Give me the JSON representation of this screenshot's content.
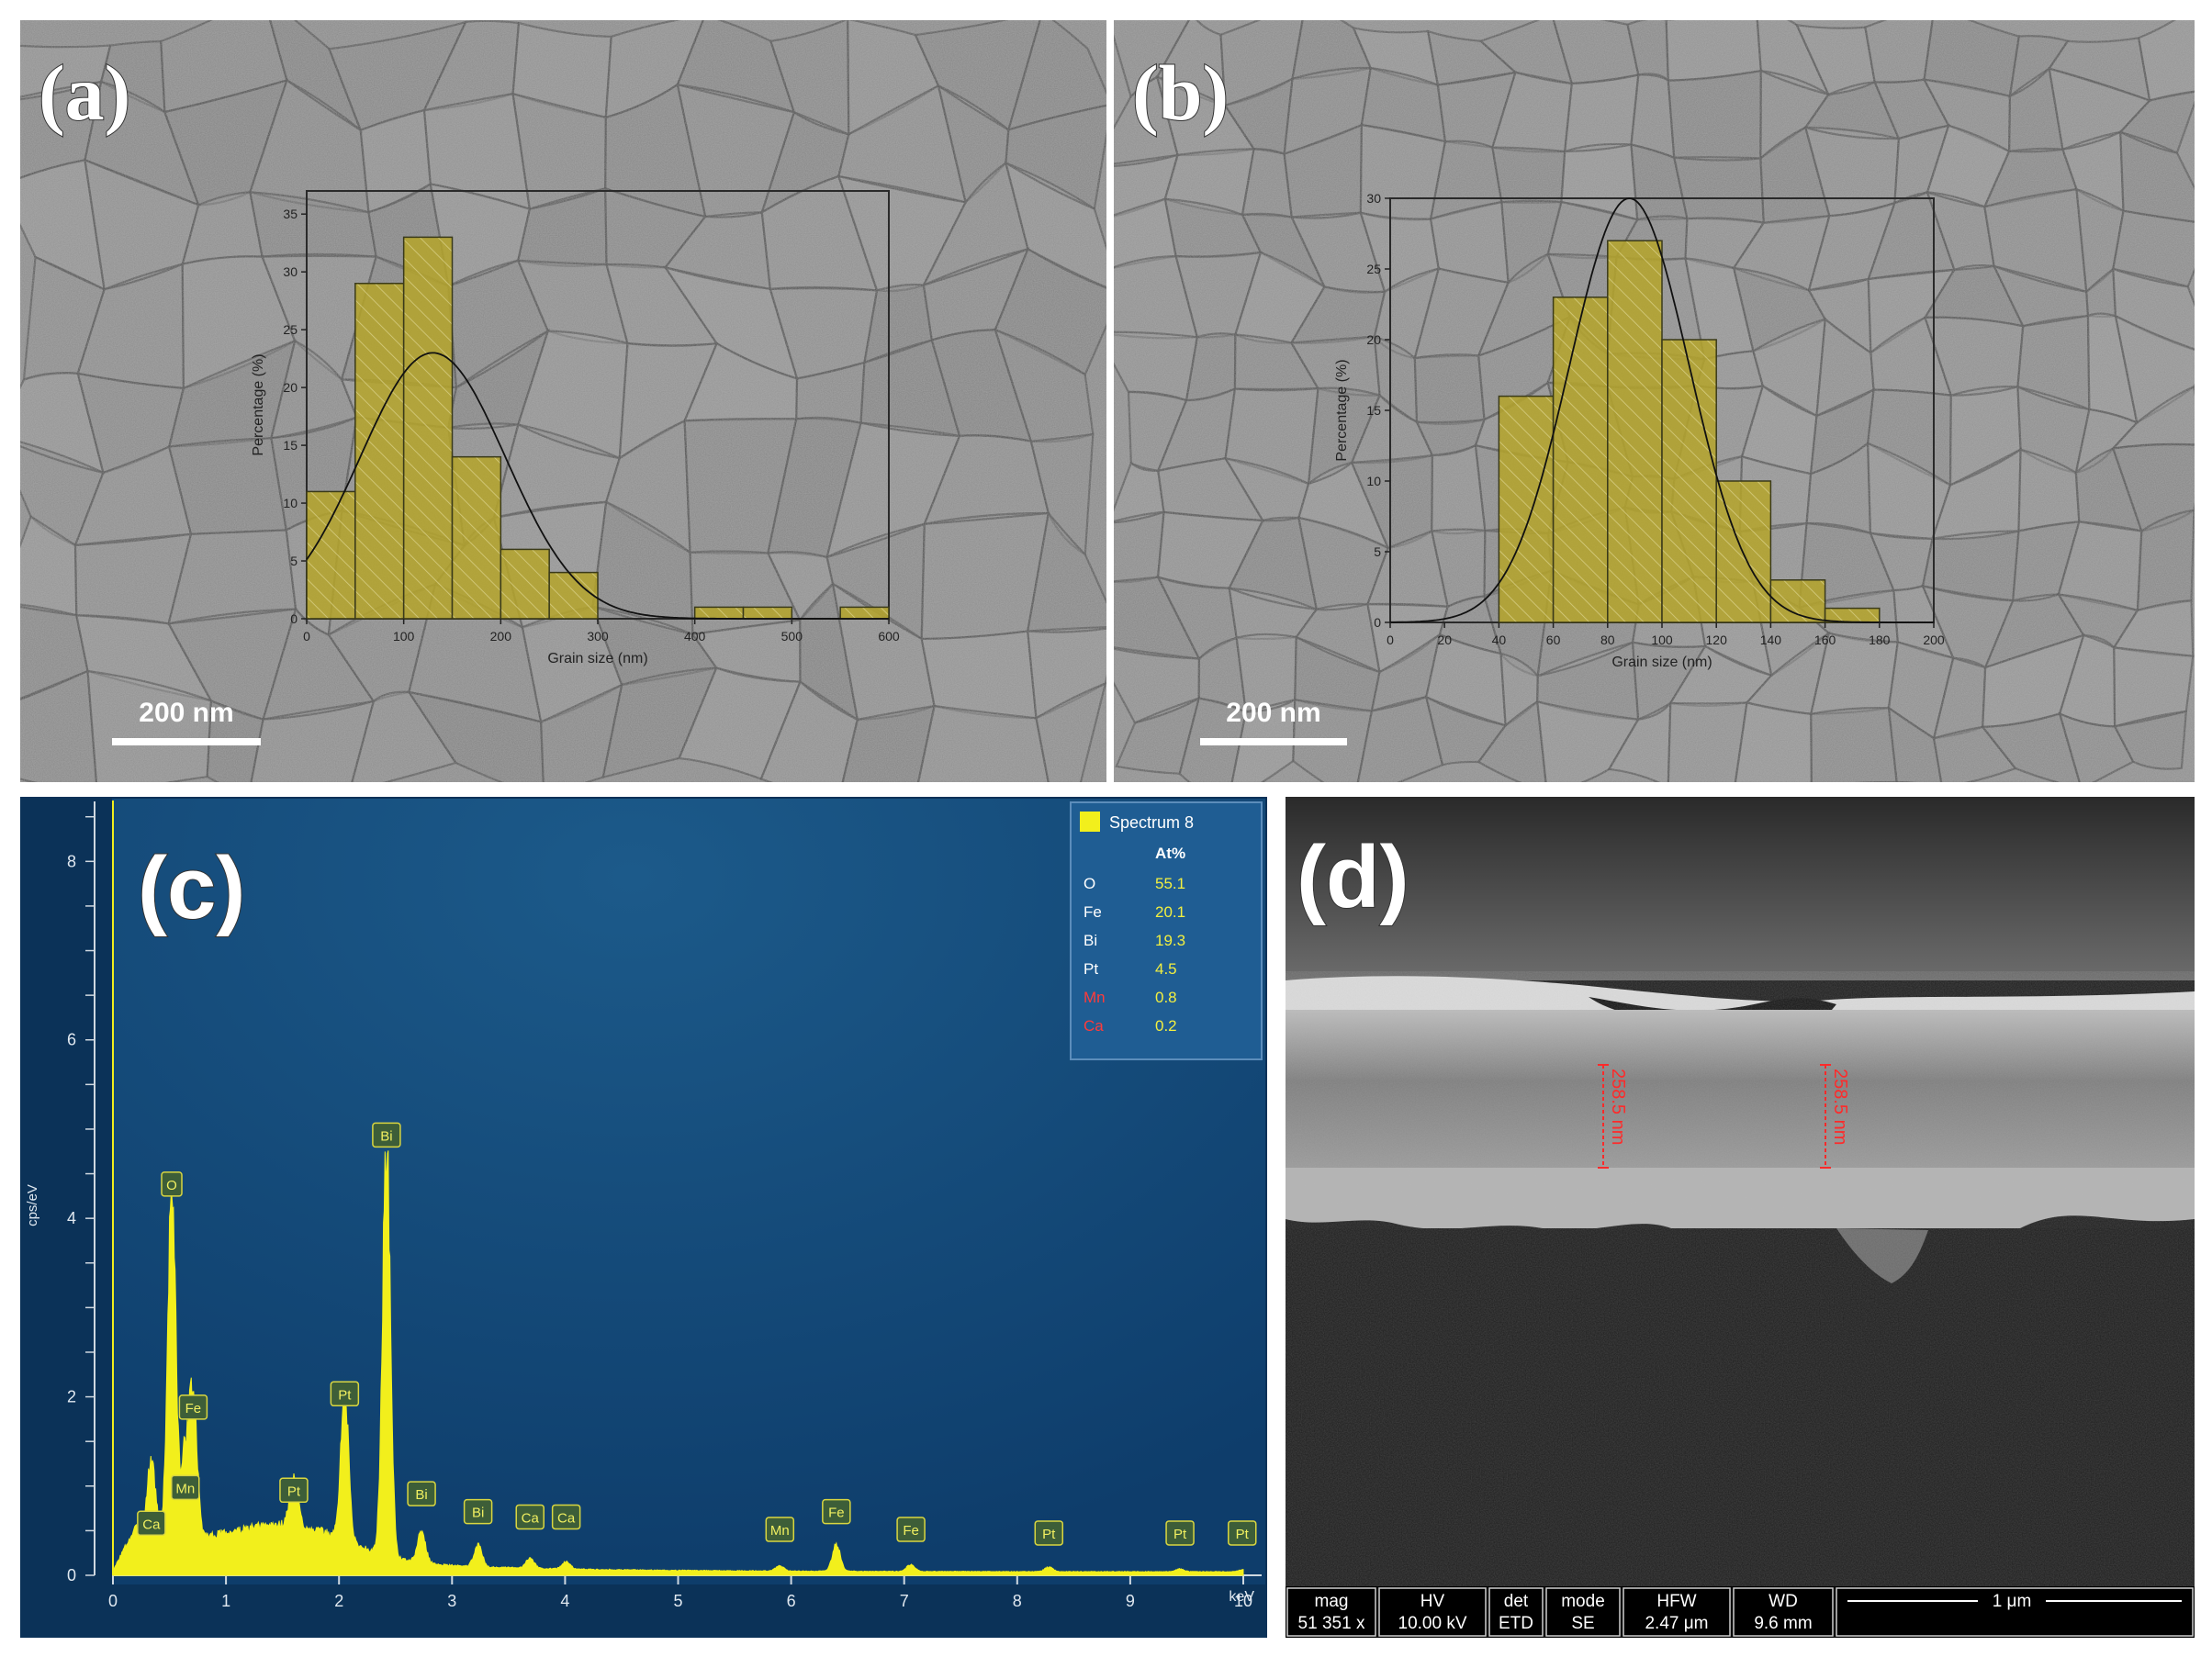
{
  "figure": {
    "panels": [
      {
        "label": "(a)",
        "scale_bar": "200 nm",
        "inset_chart": {
          "type": "bar",
          "xlabel": "Grain size (nm)",
          "ylabel": "Percentage (%)",
          "xlim": [
            0,
            600
          ],
          "ylim": [
            0,
            37
          ],
          "x_ticks": [
            0,
            100,
            200,
            300,
            400,
            500,
            600
          ],
          "y_ticks": [
            0,
            5,
            10,
            15,
            20,
            25,
            30,
            35
          ],
          "bin_width": 50,
          "bins": [
            0,
            50,
            100,
            150,
            200,
            250,
            300,
            350,
            400,
            450,
            500,
            550
          ],
          "values": [
            11,
            29,
            33,
            14,
            6,
            4,
            0,
            0,
            1,
            1,
            0,
            1
          ],
          "fit": {
            "type": "gaussian",
            "peak_x": 130,
            "peak_y": 23,
            "sigma": 75
          }
        }
      },
      {
        "label": "(b)",
        "scale_bar": "200 nm",
        "inset_chart": {
          "type": "bar",
          "xlabel": "Grain size (nm)",
          "ylabel": "Percentage (%)",
          "xlim": [
            0,
            200
          ],
          "ylim": [
            0,
            30
          ],
          "x_ticks": [
            0,
            20,
            40,
            60,
            80,
            100,
            120,
            140,
            160,
            180,
            200
          ],
          "y_ticks": [
            0,
            5,
            10,
            15,
            20,
            25,
            30
          ],
          "bin_width": 20,
          "bins": [
            40,
            60,
            80,
            100,
            120,
            140,
            160
          ],
          "values": [
            16,
            23,
            27,
            20,
            10,
            3,
            1
          ],
          "fit": {
            "type": "gaussian",
            "peak_x": 88,
            "peak_y": 30,
            "sigma": 22
          }
        }
      },
      {
        "label": "(c)",
        "legend": {
          "title": "Spectrum 8",
          "header": "At%",
          "rows": [
            {
              "element": "O",
              "value": "55.1",
              "color": "#ffffff"
            },
            {
              "element": "Fe",
              "value": "20.1",
              "color": "#ffffff"
            },
            {
              "element": "Bi",
              "value": "19.3",
              "color": "#ffffff"
            },
            {
              "element": "Pt",
              "value": "4.5",
              "color": "#ffffff"
            },
            {
              "element": "Mn",
              "value": "0.8",
              "color": "#ff3b3b"
            },
            {
              "element": "Ca",
              "value": "0.2",
              "color": "#ff3b3b"
            }
          ]
        },
        "chart_data": {
          "type": "line",
          "xlabel": "keV",
          "ylabel": "cps/eV",
          "xlim": [
            0,
            10
          ],
          "ylim": [
            0,
            8.6
          ],
          "x_ticks": [
            0,
            1,
            2,
            3,
            4,
            5,
            6,
            7,
            8,
            9,
            10
          ],
          "y_ticks": [
            0,
            2,
            4,
            6,
            8
          ],
          "peaks": [
            {
              "element": "Ca",
              "kev": 0.34,
              "height": 0.82
            },
            {
              "element": "Mn",
              "kev": 0.64,
              "height": 0.9
            },
            {
              "element": "O",
              "kev": 0.52,
              "height": 3.95
            },
            {
              "element": "Fe",
              "kev": 0.71,
              "height": 1.5
            },
            {
              "element": "Pt",
              "kev": 1.6,
              "height": 0.55
            },
            {
              "element": "Pt",
              "kev": 2.05,
              "height": 1.65
            },
            {
              "element": "Bi",
              "kev": 2.42,
              "height": 4.6
            },
            {
              "element": "Bi",
              "kev": 2.73,
              "height": 0.35
            },
            {
              "element": "Bi",
              "kev": 3.23,
              "height": 0.25
            },
            {
              "element": "Ca",
              "kev": 3.69,
              "height": 0.12
            },
            {
              "element": "Ca",
              "kev": 4.01,
              "height": 0.08
            },
            {
              "element": "Mn",
              "kev": 5.9,
              "height": 0.06
            },
            {
              "element": "Fe",
              "kev": 6.4,
              "height": 0.3
            },
            {
              "element": "Fe",
              "kev": 7.06,
              "height": 0.08
            },
            {
              "element": "Pt",
              "kev": 8.28,
              "height": 0.05
            },
            {
              "element": "Pt",
              "kev": 9.44,
              "height": 0.03
            },
            {
              "element": "Pt",
              "kev": 9.99,
              "height": 0.02
            }
          ],
          "peak_labels": [
            {
              "text": "O",
              "kev": 0.52,
              "at": 4.25
            },
            {
              "text": "Fe",
              "kev": 0.71,
              "at": 1.75
            },
            {
              "text": "Mn",
              "kev": 0.64,
              "at": 0.85
            },
            {
              "text": "Ca",
              "kev": 0.34,
              "at": 0.45
            },
            {
              "text": "Pt",
              "kev": 1.6,
              "at": 0.82
            },
            {
              "text": "Pt",
              "kev": 2.05,
              "at": 1.9
            },
            {
              "text": "Bi",
              "kev": 2.42,
              "at": 4.8
            },
            {
              "text": "Bi",
              "kev": 2.73,
              "at": 0.78
            },
            {
              "text": "Bi",
              "kev": 3.23,
              "at": 0.58
            },
            {
              "text": "Ca",
              "kev": 3.69,
              "at": 0.52
            },
            {
              "text": "Ca",
              "kev": 4.01,
              "at": 0.52
            },
            {
              "text": "Mn",
              "kev": 5.9,
              "at": 0.38
            },
            {
              "text": "Fe",
              "kev": 6.4,
              "at": 0.58
            },
            {
              "text": "Fe",
              "kev": 7.06,
              "at": 0.38
            },
            {
              "text": "Pt",
              "kev": 8.28,
              "at": 0.34
            },
            {
              "text": "Pt",
              "kev": 9.44,
              "at": 0.34
            },
            {
              "text": "Pt",
              "kev": 9.99,
              "at": 0.34
            }
          ]
        }
      },
      {
        "label": "(d)",
        "measurements": [
          "258.5 nm",
          "258.5 nm"
        ],
        "info_bar": {
          "headers": [
            "mag",
            "HV",
            "det",
            "mode",
            "HFW",
            "WD"
          ],
          "values": [
            "51 351 x",
            "10.00 kV",
            "ETD",
            "SE",
            "2.47 μm",
            "9.6 mm"
          ],
          "scale": "1 μm"
        }
      }
    ],
    "colors": {
      "histogram_fill": "#b5a52a",
      "eds_background": "#0e3d6b",
      "eds_trace": "#f2ef1c",
      "measurement": "#ff2a2a"
    }
  }
}
